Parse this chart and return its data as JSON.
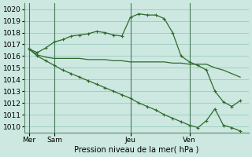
{
  "bg_color": "#cce8e0",
  "grid_color": "#99ccbb",
  "line_color": "#2d6a2d",
  "title": "Pression niveau de la mer( hPa )",
  "ylim": [
    1009.5,
    1020.5
  ],
  "yticks": [
    1010,
    1011,
    1012,
    1013,
    1014,
    1015,
    1016,
    1017,
    1018,
    1019,
    1020
  ],
  "day_positions": [
    0,
    3,
    12,
    19
  ],
  "day_labels": [
    "Mer",
    "Sam",
    "Jeu",
    "Ven"
  ],
  "xlim": [
    -0.5,
    26
  ],
  "line1_x": [
    0,
    1,
    2,
    3,
    4,
    5,
    6,
    7,
    8,
    9,
    10,
    11,
    12,
    13,
    14,
    15,
    16,
    17,
    18,
    19,
    20,
    21,
    22,
    23,
    24,
    25
  ],
  "line1_y": [
    1016.6,
    1016.1,
    1015.9,
    1015.8,
    1015.8,
    1015.8,
    1015.8,
    1015.7,
    1015.7,
    1015.7,
    1015.6,
    1015.6,
    1015.5,
    1015.5,
    1015.5,
    1015.5,
    1015.5,
    1015.4,
    1015.4,
    1015.3,
    1015.3,
    1015.3,
    1015.0,
    1014.8,
    1014.5,
    1014.2
  ],
  "line2_x": [
    0,
    1,
    2,
    3,
    4,
    5,
    6,
    7,
    8,
    9,
    10,
    11,
    12,
    13,
    14,
    15,
    16,
    17,
    18,
    19,
    20,
    21,
    22,
    23,
    24,
    25
  ],
  "line2_y": [
    1016.6,
    1016.3,
    1016.7,
    1017.2,
    1017.4,
    1017.7,
    1017.8,
    1017.9,
    1018.1,
    1018.0,
    1017.8,
    1017.7,
    1019.3,
    1019.6,
    1019.5,
    1019.5,
    1019.2,
    1018.0,
    1016.0,
    1015.5,
    1015.2,
    1014.8,
    1013.0,
    1012.1,
    1011.7,
    1012.2
  ],
  "line2_markers_x": [
    1,
    2,
    3,
    4,
    5,
    6,
    7,
    8,
    9,
    10,
    11,
    12,
    13,
    14,
    15,
    16,
    17,
    18,
    19,
    20,
    21,
    22,
    23,
    24,
    25
  ],
  "line3_x": [
    0,
    1,
    2,
    3,
    4,
    5,
    6,
    7,
    8,
    9,
    10,
    11,
    12,
    13,
    14,
    15,
    16,
    17,
    18,
    19,
    20,
    21,
    22,
    23,
    24,
    25
  ],
  "line3_y": [
    1016.6,
    1016.0,
    1015.6,
    1015.2,
    1014.8,
    1014.5,
    1014.2,
    1013.9,
    1013.6,
    1013.3,
    1013.0,
    1012.7,
    1012.4,
    1012.0,
    1011.7,
    1011.4,
    1011.0,
    1010.7,
    1010.4,
    1010.1,
    1009.9,
    1010.5,
    1011.5,
    1010.1,
    1009.9,
    1009.6
  ]
}
